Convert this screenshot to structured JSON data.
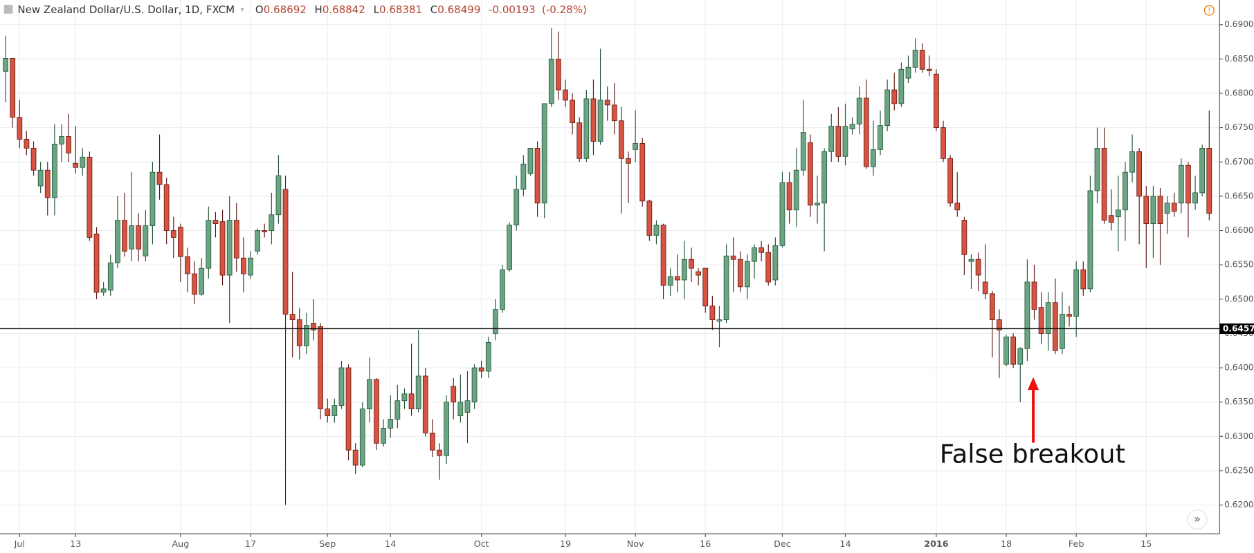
{
  "header": {
    "symbol": "New Zealand Dollar/U.S. Dollar, 1D, FXCM",
    "open_label": "O",
    "open": "0.68692",
    "high_label": "H",
    "high": "0.68842",
    "low_label": "L",
    "low": "0.68381",
    "close_label": "C",
    "close": "0.68499",
    "change": "-0.00193",
    "change_pct": "(-0.28%)"
  },
  "chart_data": {
    "type": "candlestick",
    "categories": [
      null,
      null,
      "Jul",
      null,
      null,
      null,
      null,
      null,
      null,
      null,
      "13",
      null,
      null,
      null,
      null,
      null,
      null,
      null,
      null,
      null,
      null,
      null,
      null,
      null,
      null,
      "Aug",
      null,
      null,
      null,
      null,
      null,
      null,
      null,
      null,
      null,
      "17",
      null,
      null,
      null,
      null,
      null,
      null,
      null,
      null,
      null,
      null,
      "Sep",
      null,
      null,
      null,
      null,
      null,
      null,
      null,
      null,
      "14",
      null,
      null,
      null,
      null,
      null,
      null,
      null,
      null,
      null,
      null,
      null,
      null,
      "Oct",
      null,
      null,
      null,
      null,
      null,
      null,
      null,
      null,
      null,
      null,
      null,
      "19",
      null,
      null,
      null,
      null,
      null,
      null,
      null,
      null,
      null,
      "Nov",
      null,
      null,
      null,
      null,
      null,
      null,
      null,
      null,
      null,
      "16",
      null,
      null,
      null,
      null,
      null,
      null,
      null,
      null,
      null,
      null,
      "Dec",
      null,
      null,
      null,
      null,
      null,
      null,
      null,
      null,
      "14",
      null,
      null,
      null,
      null,
      null,
      null,
      null,
      null,
      null,
      null,
      null,
      null,
      "2016",
      null,
      null,
      null,
      null,
      null,
      null,
      null,
      null,
      null,
      "18",
      null,
      null,
      null,
      null,
      null,
      null,
      null,
      null,
      null,
      "Feb",
      null,
      null,
      null,
      null,
      null,
      null,
      null,
      null,
      null,
      "15",
      null,
      null,
      null,
      null,
      null,
      null,
      null,
      null,
      null
    ],
    "open": [
      0.6832,
      0.6851,
      0.6765,
      0.6733,
      0.672,
      0.6665,
      0.6688,
      0.6648,
      0.6726,
      0.6737,
      0.6698,
      0.6692,
      0.6707,
      0.6595,
      0.651,
      0.6513,
      0.6553,
      0.6615,
      0.6573,
      0.6607,
      0.6563,
      0.6607,
      0.6685,
      0.6667,
      0.66,
      0.6605,
      0.6562,
      0.6537,
      0.6507,
      0.6545,
      0.6615,
      0.6613,
      0.6535,
      0.6615,
      0.656,
      0.6535,
      0.657,
      0.66,
      0.66,
      0.6623,
      0.666,
      0.6478,
      0.647,
      0.6432,
      0.6465,
      0.646,
      0.634,
      0.633,
      0.6345,
      0.64,
      0.628,
      0.6258,
      0.634,
      0.6383,
      0.629,
      0.6312,
      0.6325,
      0.6352,
      0.6362,
      0.634,
      0.6388,
      0.6305,
      0.628,
      0.6272,
      0.6373,
      0.633,
      0.6335,
      0.635,
      0.64,
      0.6395,
      0.645,
      0.6485,
      0.6543,
      0.6608,
      0.666,
      0.6683,
      0.672,
      0.664,
      0.6785,
      0.685,
      0.6805,
      0.679,
      0.6757,
      0.6705,
      0.6792,
      0.673,
      0.679,
      0.6783,
      0.676,
      0.6705,
      0.6718,
      0.6727,
      0.6643,
      0.6593,
      0.6608,
      0.652,
      0.6533,
      0.6528,
      0.6558,
      0.654,
      0.6545,
      0.649,
      0.6468,
      0.647,
      0.6563,
      0.6558,
      0.6518,
      0.6555,
      0.6575,
      0.6568,
      0.6528,
      0.6578,
      0.667,
      0.663,
      0.6688,
      0.6728,
      0.6637,
      0.664,
      0.6715,
      0.6752,
      0.6708,
      0.6748,
      0.6755,
      0.6793,
      0.6693,
      0.6718,
      0.6753,
      0.6805,
      0.6785,
      0.6822,
      0.6838,
      0.6863,
      0.6835,
      0.6828,
      0.675,
      0.6705,
      0.664,
      0.6615,
      0.6555,
      0.6558,
      0.6525,
      0.6508,
      0.647,
      0.6405,
      0.6445,
      0.6405,
      0.6428,
      0.6525,
      0.6488,
      0.645,
      0.6495,
      0.6428,
      0.6478,
      0.6475,
      0.6543,
      0.6515,
      0.6658,
      0.672,
      0.6622,
      0.662,
      0.663,
      0.6685,
      0.6715,
      0.665,
      0.661,
      0.665,
      0.6625,
      0.664,
      0.664,
      0.6695,
      0.664,
      0.6655,
      0.672
    ],
    "high": [
      0.6884,
      0.6851,
      0.679,
      0.6745,
      0.673,
      0.67,
      0.67,
      0.6755,
      0.6755,
      0.677,
      0.6752,
      0.672,
      0.6715,
      0.6605,
      0.6525,
      0.6565,
      0.665,
      0.6655,
      0.6685,
      0.6625,
      0.663,
      0.67,
      0.674,
      0.6677,
      0.662,
      0.661,
      0.6575,
      0.6555,
      0.656,
      0.6635,
      0.6627,
      0.663,
      0.665,
      0.664,
      0.659,
      0.657,
      0.6603,
      0.661,
      0.6655,
      0.671,
      0.668,
      0.654,
      0.6487,
      0.648,
      0.65,
      0.6465,
      0.6355,
      0.6355,
      0.641,
      0.6405,
      0.629,
      0.635,
      0.6415,
      0.6385,
      0.6325,
      0.636,
      0.6375,
      0.637,
      0.6435,
      0.6455,
      0.64,
      0.6325,
      0.629,
      0.636,
      0.6385,
      0.639,
      0.6395,
      0.6405,
      0.641,
      0.6445,
      0.65,
      0.655,
      0.6612,
      0.668,
      0.671,
      0.672,
      0.673,
      0.6785,
      0.6895,
      0.689,
      0.682,
      0.68,
      0.6765,
      0.6805,
      0.682,
      0.6865,
      0.681,
      0.6815,
      0.678,
      0.6715,
      0.6775,
      0.6735,
      0.6645,
      0.6615,
      0.661,
      0.6545,
      0.6565,
      0.6585,
      0.6575,
      0.6545,
      0.6545,
      0.6505,
      0.649,
      0.658,
      0.659,
      0.657,
      0.6565,
      0.658,
      0.6585,
      0.658,
      0.659,
      0.6685,
      0.6685,
      0.672,
      0.679,
      0.674,
      0.668,
      0.672,
      0.677,
      0.678,
      0.6785,
      0.6765,
      0.681,
      0.682,
      0.676,
      0.6775,
      0.682,
      0.683,
      0.6845,
      0.6855,
      0.688,
      0.6873,
      0.6855,
      0.6835,
      0.676,
      0.671,
      0.6685,
      0.662,
      0.6565,
      0.6568,
      0.658,
      0.6512,
      0.6485,
      0.6448,
      0.645,
      0.643,
      0.6558,
      0.655,
      0.651,
      0.651,
      0.653,
      0.651,
      0.649,
      0.6555,
      0.6555,
      0.668,
      0.675,
      0.675,
      0.666,
      0.668,
      0.67,
      0.674,
      0.672,
      0.6665,
      0.6665,
      0.6662,
      0.665,
      0.6655,
      0.6705,
      0.67,
      0.668,
      0.6725,
      0.6775
    ],
    "low": [
      0.6787,
      0.675,
      0.672,
      0.671,
      0.668,
      0.6655,
      0.6622,
      0.6622,
      0.67,
      0.67,
      0.6683,
      0.668,
      0.6585,
      0.65,
      0.6505,
      0.6505,
      0.6545,
      0.6562,
      0.6555,
      0.6555,
      0.6555,
      0.658,
      0.6645,
      0.658,
      0.656,
      0.6525,
      0.651,
      0.6493,
      0.6505,
      0.653,
      0.659,
      0.652,
      0.6465,
      0.654,
      0.651,
      0.653,
      0.6565,
      0.659,
      0.658,
      0.661,
      0.62,
      0.6415,
      0.6412,
      0.642,
      0.644,
      0.6325,
      0.632,
      0.632,
      0.634,
      0.6265,
      0.6245,
      0.6255,
      0.632,
      0.628,
      0.6285,
      0.6298,
      0.6312,
      0.634,
      0.633,
      0.6335,
      0.63,
      0.627,
      0.6237,
      0.626,
      0.6325,
      0.632,
      0.629,
      0.634,
      0.6385,
      0.6385,
      0.644,
      0.648,
      0.654,
      0.66,
      0.665,
      0.668,
      0.662,
      0.6618,
      0.678,
      0.679,
      0.678,
      0.674,
      0.67,
      0.67,
      0.671,
      0.6725,
      0.676,
      0.674,
      0.6625,
      0.664,
      0.67,
      0.6635,
      0.6585,
      0.658,
      0.65,
      0.6505,
      0.651,
      0.65,
      0.6525,
      0.652,
      0.648,
      0.6455,
      0.643,
      0.6465,
      0.651,
      0.651,
      0.65,
      0.653,
      0.6555,
      0.652,
      0.652,
      0.6575,
      0.661,
      0.6605,
      0.668,
      0.662,
      0.661,
      0.657,
      0.67,
      0.67,
      0.6695,
      0.674,
      0.674,
      0.669,
      0.668,
      0.671,
      0.6745,
      0.6775,
      0.678,
      0.6815,
      0.683,
      0.683,
      0.6825,
      0.6745,
      0.67,
      0.6635,
      0.662,
      0.6535,
      0.6515,
      0.6512,
      0.65,
      0.6415,
      0.6385,
      0.6402,
      0.64,
      0.635,
      0.641,
      0.647,
      0.6435,
      0.6425,
      0.642,
      0.642,
      0.646,
      0.6445,
      0.6505,
      0.651,
      0.664,
      0.661,
      0.66,
      0.657,
      0.6585,
      0.667,
      0.658,
      0.6545,
      0.656,
      0.655,
      0.6595,
      0.662,
      0.6625,
      0.659,
      0.663,
      0.665,
      0.6615
    ],
    "close": [
      0.6851,
      0.6765,
      0.6733,
      0.672,
      0.6688,
      0.6688,
      0.6648,
      0.6726,
      0.6737,
      0.6713,
      0.6692,
      0.6707,
      0.659,
      0.651,
      0.6515,
      0.6553,
      0.6615,
      0.657,
      0.6607,
      0.6573,
      0.6607,
      0.6685,
      0.6667,
      0.66,
      0.659,
      0.6562,
      0.6537,
      0.6507,
      0.6545,
      0.6615,
      0.661,
      0.6535,
      0.6615,
      0.656,
      0.6537,
      0.656,
      0.66,
      0.6598,
      0.6623,
      0.668,
      0.6478,
      0.647,
      0.6432,
      0.6462,
      0.6455,
      0.634,
      0.633,
      0.6345,
      0.64,
      0.628,
      0.6258,
      0.634,
      0.6383,
      0.629,
      0.6312,
      0.6325,
      0.6352,
      0.6362,
      0.634,
      0.6388,
      0.6305,
      0.628,
      0.6272,
      0.635,
      0.635,
      0.635,
      0.6352,
      0.64,
      0.6395,
      0.6437,
      0.6485,
      0.6543,
      0.6608,
      0.666,
      0.6697,
      0.672,
      0.664,
      0.6785,
      0.685,
      0.6805,
      0.679,
      0.6757,
      0.6705,
      0.6792,
      0.673,
      0.679,
      0.6783,
      0.676,
      0.6705,
      0.6698,
      0.6727,
      0.6643,
      0.6593,
      0.6608,
      0.652,
      0.6533,
      0.6528,
      0.6558,
      0.6545,
      0.6535,
      0.649,
      0.647,
      0.647,
      0.6563,
      0.6558,
      0.6518,
      0.6555,
      0.6575,
      0.6568,
      0.6525,
      0.6578,
      0.667,
      0.663,
      0.6688,
      0.6743,
      0.6637,
      0.664,
      0.6715,
      0.6752,
      0.6708,
      0.6752,
      0.6755,
      0.6793,
      0.6693,
      0.6718,
      0.6753,
      0.6805,
      0.6785,
      0.6835,
      0.6838,
      0.6863,
      0.6835,
      0.6833,
      0.675,
      0.6705,
      0.664,
      0.663,
      0.6565,
      0.6558,
      0.6535,
      0.6508,
      0.647,
      0.6455,
      0.6445,
      0.6405,
      0.6428,
      0.6525,
      0.6485,
      0.645,
      0.6495,
      0.6425,
      0.6478,
      0.6475,
      0.6543,
      0.6515,
      0.6658,
      0.672,
      0.6615,
      0.6612,
      0.663,
      0.6685,
      0.6715,
      0.665,
      0.661,
      0.665,
      0.661,
      0.664,
      0.6628,
      0.6695,
      0.664,
      0.6655,
      0.672,
      0.6625
    ],
    "up_color": "#6ba583",
    "up_border": "#225437",
    "down_color": "#d75442",
    "down_border": "#5b1a13",
    "ylim": [
      0.6158,
      0.6936
    ],
    "yticks": [
      {
        "value": 0.62,
        "label": "0.62000"
      },
      {
        "value": 0.625,
        "label": "0.62500"
      },
      {
        "value": 0.63,
        "label": "0.63000"
      },
      {
        "value": 0.635,
        "label": "0.63500"
      },
      {
        "value": 0.64,
        "label": "0.64000"
      },
      {
        "value": 0.645,
        "label": "0.64500"
      },
      {
        "value": 0.65,
        "label": "0.65000"
      },
      {
        "value": 0.655,
        "label": "0.65500"
      },
      {
        "value": 0.66,
        "label": "0.66000"
      },
      {
        "value": 0.665,
        "label": "0.66500"
      },
      {
        "value": 0.67,
        "label": "0.67000"
      },
      {
        "value": 0.675,
        "label": "0.67500"
      },
      {
        "value": 0.68,
        "label": "0.68000"
      },
      {
        "value": 0.685,
        "label": "0.68500"
      },
      {
        "value": 0.69,
        "label": "0.69000"
      }
    ],
    "grid": true,
    "price_line": {
      "value": 0.6457,
      "label": "0.64570"
    },
    "annotation": "False breakout"
  }
}
